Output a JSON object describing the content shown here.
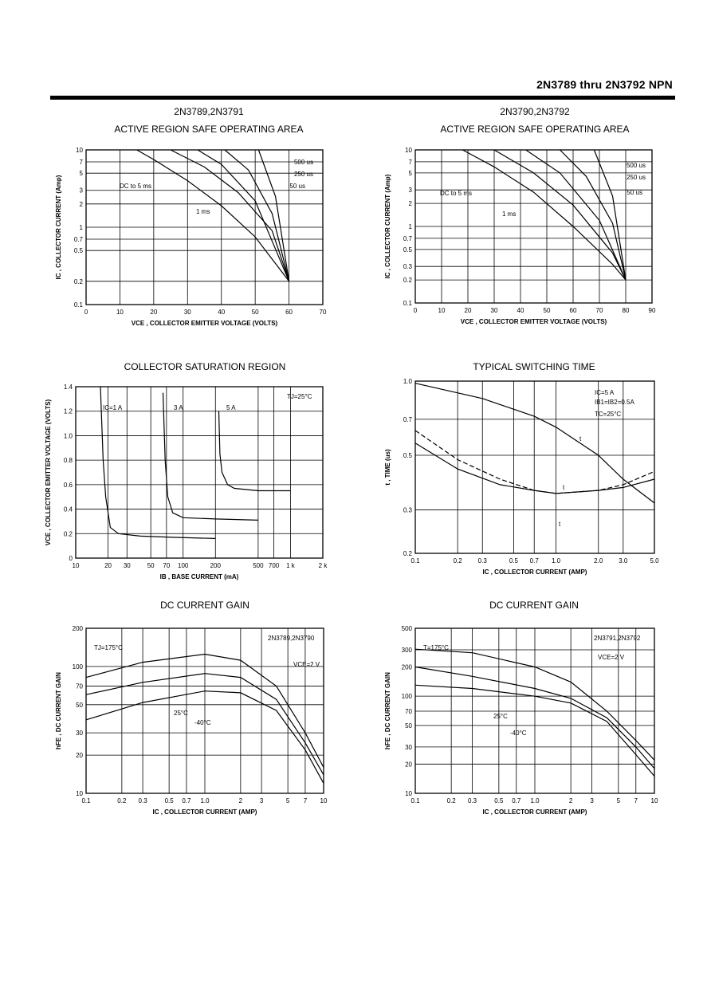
{
  "header": {
    "title": "2N3789 thru 2N3792 NPN"
  },
  "charts": [
    {
      "id": "soa1",
      "group": "2N3789,2N3791",
      "title": "ACTIVE REGION SAFE OPERATING AREA",
      "x_label": "VCE , COLLECTOR EMITTER VOLTAGE (VOLTS)",
      "y_label": "IC , COLLECTOR CURRENT (Amp)",
      "x_ticks": [
        "0",
        "10",
        "20",
        "30",
        "40",
        "50",
        "60",
        "70"
      ],
      "y_ticks": [
        "10",
        "7",
        "5",
        "3",
        "2",
        "1",
        "0.7",
        "0.5",
        "0.2",
        "0.1"
      ],
      "labels": [
        "500 us",
        "250 us",
        "50 us",
        "DC to 5 ms",
        "1 ms"
      ]
    },
    {
      "id": "soa2",
      "group": "2N3790,2N3792",
      "title": "ACTIVE REGION SAFE OPERATING AREA",
      "x_label": "VCE , COLLECTOR EMITTER VOLTAGE (VOLTS)",
      "y_label": "IC , COLLECTOR CURRENT (Amp)",
      "x_ticks": [
        "0",
        "10",
        "20",
        "30",
        "40",
        "50",
        "60",
        "70",
        "80",
        "90"
      ],
      "y_ticks": [
        "10",
        "7",
        "5",
        "3",
        "2",
        "1",
        "0.7",
        "0.5",
        "0.3",
        "0.2",
        "0.1"
      ],
      "labels": [
        "500 us",
        "250 us",
        "50 us",
        "DC to 5 ms",
        "1 ms"
      ]
    },
    {
      "id": "sat",
      "group": "",
      "title": "COLLECTOR SATURATION REGION",
      "x_label": "IB , BASE CURRENT (mA)",
      "y_label": "VCE , COLLECTOR EMITTER VOLTAGE (VOLTS)",
      "x_ticks": [
        "10",
        "20",
        "30",
        "50",
        "70",
        "100",
        "200",
        "500",
        "700",
        "1 k",
        "2 k"
      ],
      "y_ticks": [
        "1.4",
        "1.2",
        "1.0",
        "0.8",
        "0.6",
        "0.4",
        "0.2",
        "0"
      ],
      "labels": [
        "IC=1 A",
        "3 A",
        "5 A",
        "TJ=25°C"
      ]
    },
    {
      "id": "sw",
      "group": "",
      "title": "TYPICAL SWITCHING TIME",
      "x_label": "IC , COLLECTOR CURRENT (AMP)",
      "y_label": "t , TIME (us)",
      "x_ticks": [
        "0.1",
        "0.2",
        "0.3",
        "0.5",
        "0.7",
        "1.0",
        "2.0",
        "3.0",
        "5.0"
      ],
      "y_ticks": [
        "1.0",
        "0.7",
        "0.5",
        "0.3",
        "0.2"
      ],
      "labels": [
        "IC=5 A",
        "IB1=IB2=0.5A",
        "TC=25°C",
        "t",
        "t",
        "t"
      ]
    },
    {
      "id": "gain1",
      "group": "",
      "title": "DC CURRENT GAIN",
      "x_label": "IC , COLLECTOR CURRENT (AMP)",
      "y_label": "hFE , DC CURRENT GAIN",
      "x_ticks": [
        "0.1",
        "0.2",
        "0.3",
        "0.5",
        "0.7",
        "1.0",
        "2",
        "3",
        "5",
        "7",
        "10"
      ],
      "y_ticks": [
        "200",
        "100",
        "70",
        "50",
        "30",
        "20",
        "10"
      ],
      "labels": [
        "2N3789,2N3790",
        "VCE=2 V",
        "TJ=175°C",
        "25°C",
        "-40°C"
      ]
    },
    {
      "id": "gain2",
      "group": "",
      "title": "DC CURRENT GAIN",
      "x_label": "IC , COLLECTOR CURRENT (AMP)",
      "y_label": "hFE , DC CURRENT GAIN",
      "x_ticks": [
        "0.1",
        "0.2",
        "0.3",
        "0.5",
        "0.7",
        "1.0",
        "2",
        "3",
        "5",
        "7",
        "10"
      ],
      "y_ticks": [
        "500",
        "300",
        "200",
        "100",
        "70",
        "50",
        "30",
        "20",
        "10"
      ],
      "labels": [
        "2N3791,2N3792",
        "VCE=2 V",
        "T=175°C",
        "25°C",
        "-40°C"
      ]
    }
  ],
  "chart_data": [
    {
      "type": "line",
      "title": "ACTIVE REGION SAFE OPERATING AREA",
      "subtitle": "2N3789,2N3791",
      "xlabel": "VCE , COLLECTOR EMITTER VOLTAGE (VOLTS)",
      "ylabel": "IC , COLLECTOR CURRENT (Amp)",
      "xlim": [
        0,
        70
      ],
      "ylim": [
        0.1,
        10
      ],
      "yscale": "log",
      "grid": true,
      "series": [
        {
          "name": "DC to 5 ms",
          "x": [
            15,
            20,
            30,
            40,
            50,
            60
          ],
          "y": [
            10,
            7.5,
            4,
            1.9,
            0.75,
            0.2
          ]
        },
        {
          "name": "1 ms",
          "x": [
            25,
            35,
            45,
            55,
            60
          ],
          "y": [
            10,
            6,
            2.8,
            0.9,
            0.2
          ]
        },
        {
          "name": "500 us",
          "x": [
            33,
            40,
            50,
            60
          ],
          "y": [
            10,
            6.5,
            2.2,
            0.2
          ]
        },
        {
          "name": "250 us",
          "x": [
            41,
            48,
            55,
            60
          ],
          "y": [
            10,
            5.5,
            1.5,
            0.2
          ]
        },
        {
          "name": "50 us",
          "x": [
            51,
            56,
            60
          ],
          "y": [
            10,
            2.5,
            0.2
          ]
        }
      ]
    },
    {
      "type": "line",
      "title": "ACTIVE REGION SAFE OPERATING AREA",
      "subtitle": "2N3790,2N3792",
      "xlabel": "VCE , COLLECTOR EMITTER VOLTAGE (VOLTS)",
      "ylabel": "IC , COLLECTOR CURRENT (Amp)",
      "xlim": [
        0,
        90
      ],
      "ylim": [
        0.1,
        10
      ],
      "yscale": "log",
      "grid": true,
      "series": [
        {
          "name": "DC to 5 ms",
          "x": [
            18,
            30,
            45,
            60,
            75,
            80
          ],
          "y": [
            10,
            6,
            2.8,
            1.0,
            0.32,
            0.2
          ]
        },
        {
          "name": "1 ms",
          "x": [
            30,
            45,
            60,
            75,
            80
          ],
          "y": [
            10,
            5,
            1.9,
            0.45,
            0.2
          ]
        },
        {
          "name": "500 us",
          "x": [
            42,
            55,
            70,
            80
          ],
          "y": [
            10,
            5,
            1.2,
            0.2
          ]
        },
        {
          "name": "250 us",
          "x": [
            55,
            65,
            75,
            80
          ],
          "y": [
            10,
            4.5,
            1.1,
            0.2
          ]
        },
        {
          "name": "50 us",
          "x": [
            68,
            75,
            80
          ],
          "y": [
            10,
            2.5,
            0.2
          ]
        }
      ]
    },
    {
      "type": "line",
      "title": "COLLECTOR SATURATION REGION",
      "xlabel": "IB , BASE CURRENT (mA)",
      "ylabel": "VCE , COLLECTOR EMITTER VOLTAGE (VOLTS)",
      "xlim": [
        10,
        2000
      ],
      "ylim": [
        0,
        1.4
      ],
      "xscale": "log",
      "grid": true,
      "series": [
        {
          "name": "IC=1 A",
          "x": [
            17,
            18,
            19,
            21,
            25,
            40,
            80,
            200
          ],
          "y": [
            1.4,
            0.8,
            0.5,
            0.25,
            0.2,
            0.18,
            0.17,
            0.16
          ]
        },
        {
          "name": "3 A",
          "x": [
            65,
            68,
            72,
            80,
            100,
            200,
            500
          ],
          "y": [
            1.35,
            0.8,
            0.5,
            0.37,
            0.33,
            0.32,
            0.31
          ]
        },
        {
          "name": "5 A",
          "x": [
            215,
            220,
            230,
            260,
            300,
            500,
            1000
          ],
          "y": [
            1.2,
            0.85,
            0.7,
            0.6,
            0.57,
            0.55,
            0.55
          ]
        }
      ]
    },
    {
      "type": "line",
      "title": "TYPICAL SWITCHING TIME",
      "xlabel": "IC , COLLECTOR CURRENT (AMP)",
      "ylabel": "t , TIME (us)",
      "xlim": [
        0.1,
        5.0
      ],
      "ylim": [
        0.2,
        1.0
      ],
      "xscale": "log",
      "yscale": "log",
      "grid": true,
      "series": [
        {
          "name": "t",
          "x": [
            0.1,
            0.3,
            0.7,
            1.0,
            2.0,
            3.0,
            5.0
          ],
          "y": [
            0.98,
            0.85,
            0.72,
            0.65,
            0.5,
            0.4,
            0.32
          ]
        },
        {
          "name": "t",
          "x": [
            0.1,
            0.2,
            0.4,
            0.7,
            1.0,
            2.0,
            3.0,
            5.0
          ],
          "y": [
            0.56,
            0.44,
            0.38,
            0.36,
            0.35,
            0.36,
            0.37,
            0.4
          ]
        },
        {
          "name": "t",
          "x": [
            0.1,
            0.2,
            0.4,
            0.7,
            1.0,
            2.0,
            3.0,
            5.0
          ],
          "y": [
            0.63,
            0.48,
            0.4,
            0.36,
            0.35,
            0.36,
            0.38,
            0.43
          ]
        }
      ]
    },
    {
      "type": "line",
      "title": "DC CURRENT GAIN",
      "xlabel": "IC , COLLECTOR CURRENT (AMP)",
      "ylabel": "hFE , DC CURRENT GAIN",
      "xlim": [
        0.1,
        10
      ],
      "ylim": [
        10,
        200
      ],
      "xscale": "log",
      "yscale": "log",
      "grid": true,
      "series": [
        {
          "name": "TJ=175°C",
          "x": [
            0.1,
            0.3,
            1.0,
            2.0,
            4.0,
            7.0,
            10
          ],
          "y": [
            82,
            108,
            125,
            112,
            70,
            30,
            16
          ]
        },
        {
          "name": "25°C",
          "x": [
            0.1,
            0.3,
            1.0,
            2.0,
            4.0,
            7.0,
            10
          ],
          "y": [
            60,
            75,
            88,
            82,
            55,
            25,
            14
          ]
        },
        {
          "name": "-40°C",
          "x": [
            0.1,
            0.3,
            1.0,
            2.0,
            4.0,
            7.0,
            10
          ],
          "y": [
            38,
            52,
            64,
            62,
            45,
            22,
            12
          ]
        }
      ]
    },
    {
      "type": "line",
      "title": "DC CURRENT GAIN",
      "xlabel": "IC , COLLECTOR CURRENT (AMP)",
      "ylabel": "hFE , DC CURRENT GAIN",
      "xlim": [
        0.1,
        10
      ],
      "ylim": [
        10,
        500
      ],
      "xscale": "log",
      "yscale": "log",
      "grid": true,
      "series": [
        {
          "name": "T=175°C",
          "x": [
            0.1,
            0.3,
            1.0,
            2.0,
            4.0,
            7.0,
            10
          ],
          "y": [
            305,
            280,
            200,
            140,
            70,
            35,
            22
          ]
        },
        {
          "name": "25°C",
          "x": [
            0.1,
            0.3,
            1.0,
            2.0,
            4.0,
            7.0,
            10
          ],
          "y": [
            200,
            160,
            120,
            95,
            60,
            30,
            18
          ]
        },
        {
          "name": "-40°C",
          "x": [
            0.1,
            0.3,
            1.0,
            2.0,
            4.0,
            7.0,
            10
          ],
          "y": [
            130,
            120,
            100,
            85,
            55,
            25,
            15
          ]
        }
      ]
    }
  ]
}
